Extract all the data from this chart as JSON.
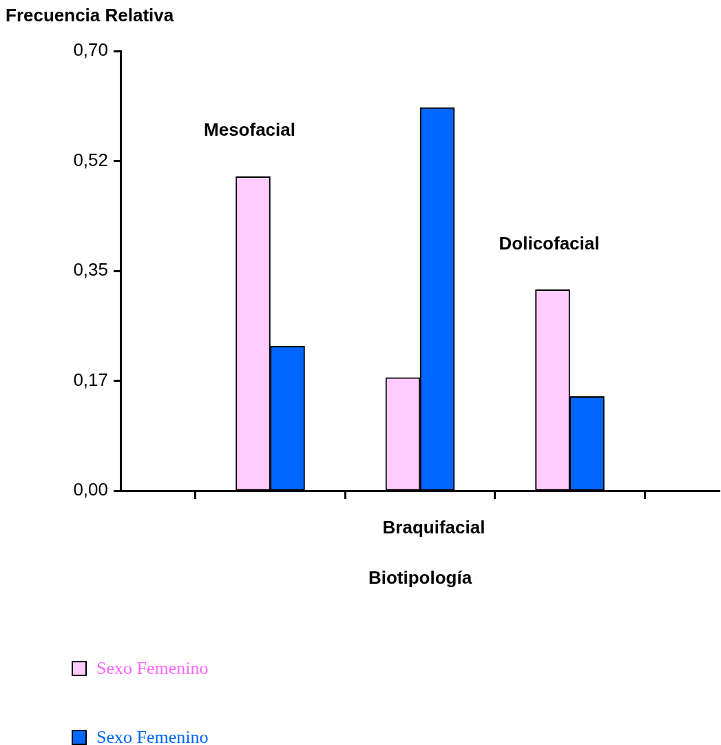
{
  "chart_data": {
    "type": "bar",
    "ylabel": "Frecuencia Relativa",
    "xlabel": "Biotipología",
    "categories": [
      null,
      "Mesofacial",
      "Braquifacial",
      "Dolicofacial",
      null
    ],
    "series": [
      {
        "name": "Sexo Femenino",
        "color": "#ffccff",
        "values": [
          null,
          0.5,
          0.18,
          0.32,
          null
        ]
      },
      {
        "name": "Sexo Femenino",
        "color": "#0066ff",
        "values": [
          null,
          0.23,
          0.61,
          0.15,
          null
        ]
      }
    ],
    "ylim": [
      0,
      0.7
    ],
    "yticks": [
      {
        "value": 0,
        "label": "0,00"
      },
      {
        "value": 0.175,
        "label": "0,17"
      },
      {
        "value": 0.35,
        "label": "0,35"
      },
      {
        "value": 0.525,
        "label": "0,52"
      },
      {
        "value": 0.7,
        "label": "0,70"
      }
    ],
    "grid": false,
    "legend": "bottom left"
  }
}
